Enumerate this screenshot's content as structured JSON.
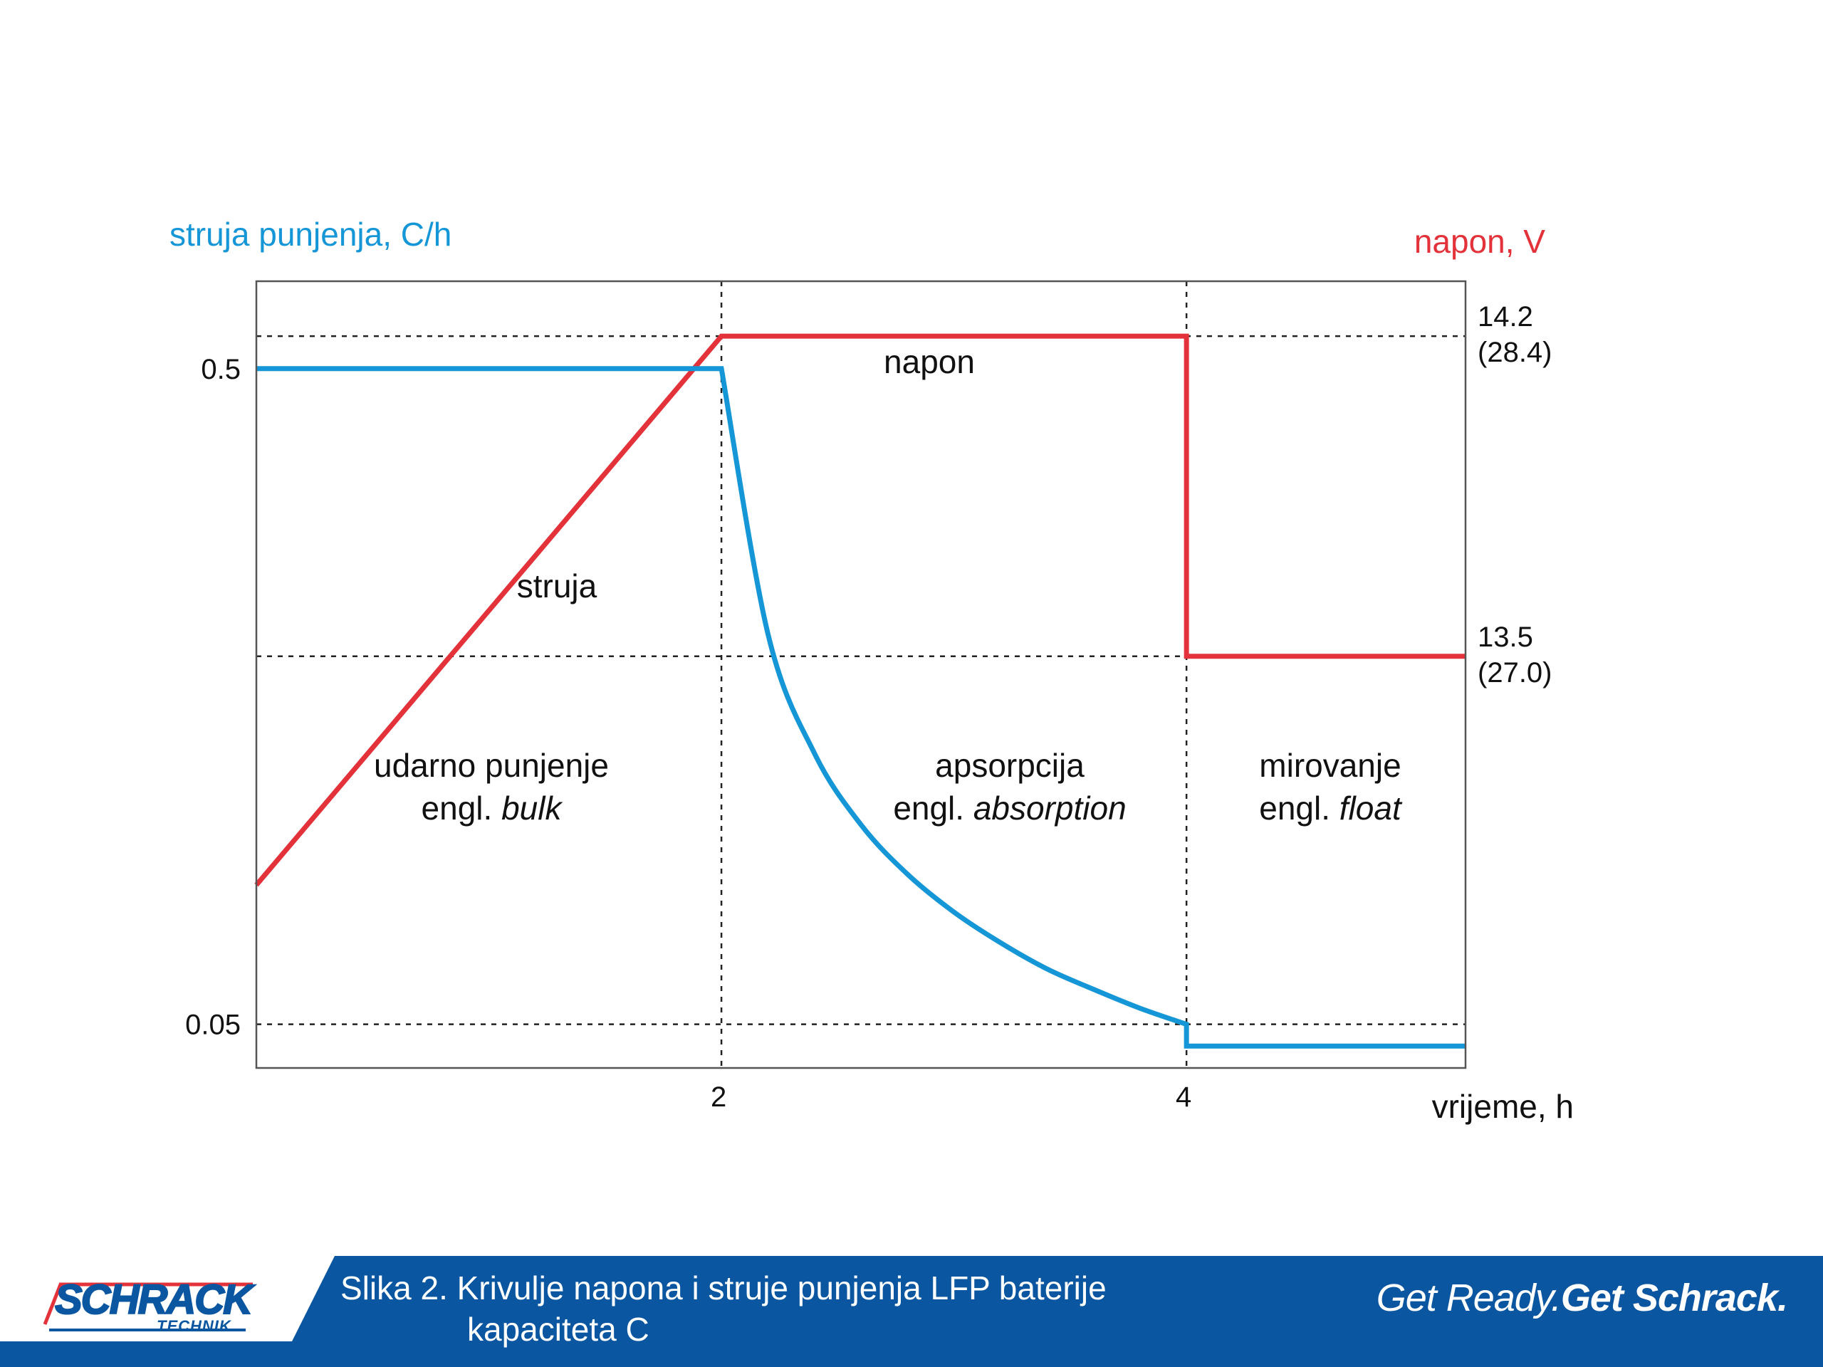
{
  "chart_data": {
    "type": "line",
    "title": "",
    "xlabel": "vrijeme, h",
    "ylabel_left": "struja punjenja, C/h",
    "ylabel_right": "napon, V",
    "x_range": [
      0,
      5.2
    ],
    "x_ticks": [
      {
        "value": 2,
        "label": "2"
      },
      {
        "value": 4,
        "label": "4"
      }
    ],
    "y_left_range": [
      0.02,
      0.56
    ],
    "y_left_ticks": [
      {
        "value": 0.5,
        "label": "0.5"
      },
      {
        "value": 0.05,
        "label": "0.05"
      }
    ],
    "y_right_range": [
      12.6,
      14.32
    ],
    "y_right_ticks": [
      {
        "value": 14.2,
        "label": "14.2",
        "label2": "(28.4)"
      },
      {
        "value": 13.5,
        "label": "13.5",
        "label2": "(27.0)"
      }
    ],
    "grid_vertical": [
      2,
      4
    ],
    "series": [
      {
        "name": "napon",
        "axis": "right",
        "color": "#e3323a",
        "x": [
          0,
          2,
          4,
          4,
          5.2
        ],
        "y": [
          13.0,
          14.2,
          14.2,
          13.5,
          13.5
        ]
      },
      {
        "name": "struja",
        "axis": "left",
        "color": "#1596d6",
        "x": [
          0,
          2,
          2.2,
          2.4,
          2.6,
          2.8,
          3.0,
          3.2,
          3.4,
          3.6,
          3.8,
          4.0,
          4.0,
          5.2
        ],
        "y": [
          0.5,
          0.5,
          0.318,
          0.236,
          0.187,
          0.153,
          0.127,
          0.106,
          0.088,
          0.074,
          0.061,
          0.05,
          0.035,
          0.035
        ]
      }
    ],
    "phases": [
      {
        "line1": "udarno punjenje",
        "prefix": "engl. ",
        "italic": "bulk",
        "x_center": 1.0
      },
      {
        "line1": "apsorpcija",
        "prefix": "engl. ",
        "italic": "absorption",
        "x_center": 3.2
      },
      {
        "line1": "mirovanje",
        "prefix": "engl. ",
        "italic": "float",
        "x_center": 4.6
      }
    ]
  },
  "footer": {
    "logo_text": "SCHRACK",
    "logo_subtext": "TECHNIK",
    "caption_line1": "Slika 2. Krivulje napona i struje punjenja LFP baterije",
    "caption_line2": "kapaciteta C",
    "slogan_part1": "Get Ready.",
    "slogan_part2": "Get Schrack.",
    "colors": {
      "band": "#0b56a0",
      "text": "#ffffff"
    }
  }
}
